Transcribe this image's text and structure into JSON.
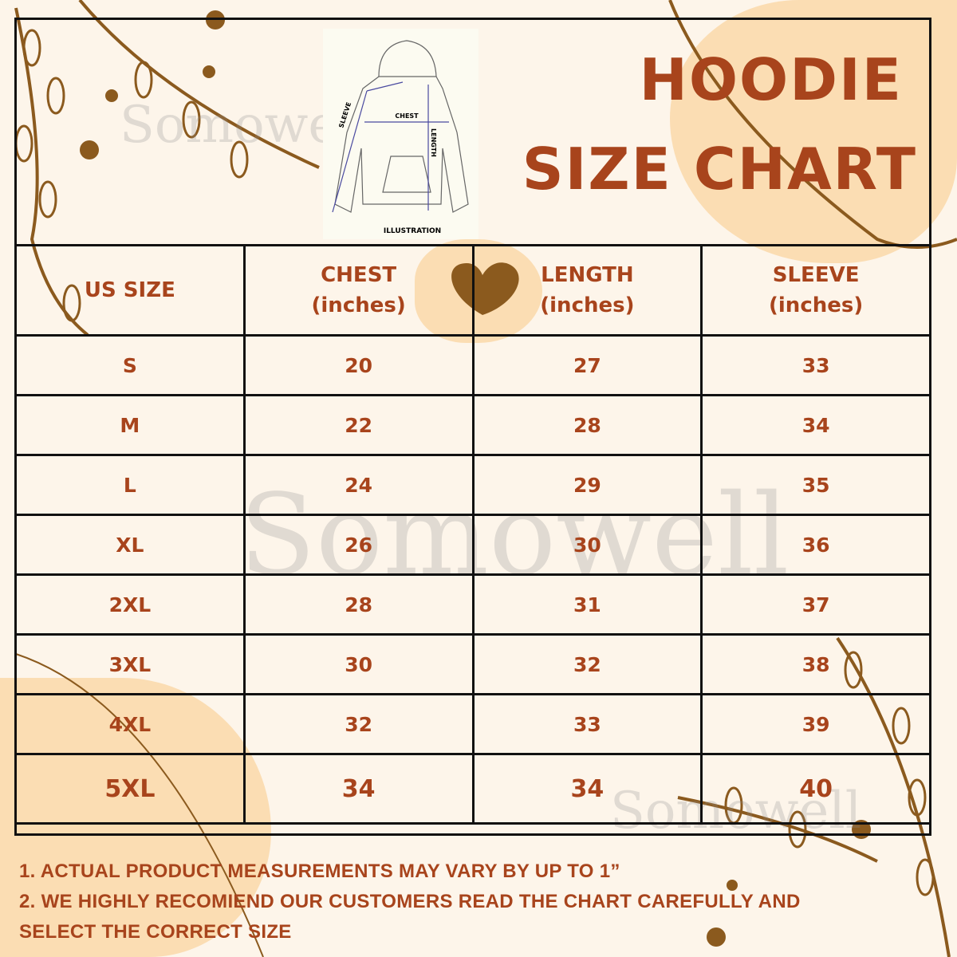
{
  "title": {
    "line1": "HOODIE",
    "line2": "SIZE CHART"
  },
  "illustration": {
    "chest": "CHEST",
    "length": "LENGTH",
    "sleeve": "SLEEVE",
    "caption": "ILLUSTRATION"
  },
  "watermark": "Somowell",
  "colors": {
    "background": "#fdf5ea",
    "accent": "#a8441c",
    "blob": "#fbddb3",
    "leaf": "#8b5a1e"
  },
  "table": {
    "headers": [
      {
        "line1": "US SIZE",
        "line2": ""
      },
      {
        "line1": "CHEST",
        "line2": "(inches)"
      },
      {
        "line1": "LENGTH",
        "line2": "(inches)"
      },
      {
        "line1": "SLEEVE",
        "line2": "(inches)"
      }
    ],
    "rows": [
      [
        "S",
        "20",
        "27",
        "33"
      ],
      [
        "M",
        "22",
        "28",
        "34"
      ],
      [
        "L",
        "24",
        "29",
        "35"
      ],
      [
        "XL",
        "26",
        "30",
        "36"
      ],
      [
        "2XL",
        "28",
        "31",
        "37"
      ],
      [
        "3XL",
        "30",
        "32",
        "38"
      ],
      [
        "4XL",
        "32",
        "33",
        "39"
      ],
      [
        "5XL",
        "34",
        "34",
        "40"
      ]
    ]
  },
  "notes": [
    "1. ACTUAL PRODUCT MEASUREMENTS MAY VARY BY UP TO 1”",
    "2. WE HIGHLY RECOMIEND OUR CUSTOMERS READ THE CHART CAREFULLY AND",
    "SELECT THE CORRECT SIZE"
  ]
}
